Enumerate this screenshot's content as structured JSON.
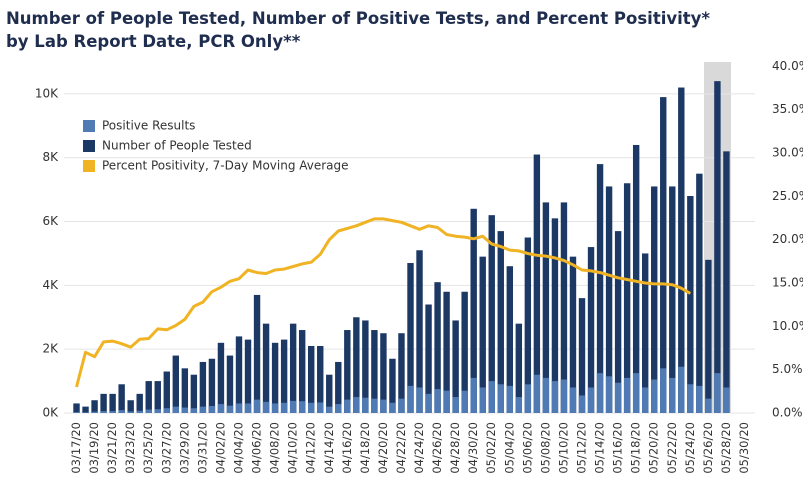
{
  "chart_data": {
    "type": "bar",
    "title": "Number of People Tested, Number of Positive Tests, and Percent Positivity*",
    "subtitle": "by Lab Report Date, PCR Only**",
    "categories": [
      "03/17/20",
      null,
      "03/19/20",
      null,
      "03/21/20",
      null,
      "03/23/20",
      null,
      "03/25/20",
      null,
      "03/27/20",
      null,
      "03/29/20",
      null,
      "03/31/20",
      null,
      "04/02/20",
      null,
      "04/04/20",
      null,
      "04/06/20",
      null,
      "04/08/20",
      null,
      "04/10/20",
      null,
      "04/12/20",
      null,
      "04/14/20",
      null,
      "04/16/20",
      null,
      "04/18/20",
      null,
      "04/20/20",
      null,
      "04/22/20",
      null,
      "04/24/20",
      null,
      "04/26/20",
      null,
      "04/28/20",
      null,
      "04/30/20",
      null,
      "05/02/20",
      null,
      "05/04/20",
      null,
      "05/06/20",
      null,
      "05/08/20",
      null,
      "05/10/20",
      null,
      "05/12/20",
      null,
      "05/14/20",
      null,
      "05/16/20",
      null,
      "05/18/20",
      null,
      "05/20/20",
      null,
      "05/22/20",
      null,
      "05/24/20",
      null,
      "05/26/20",
      null,
      "05/28/20",
      null,
      "05/30/20"
    ],
    "series": [
      {
        "name": "Positive Results",
        "color": "#4f7ab3",
        "type": "bar",
        "values": [
          30,
          20,
          40,
          60,
          60,
          90,
          50,
          70,
          110,
          120,
          150,
          200,
          170,
          150,
          200,
          220,
          280,
          230,
          300,
          300,
          420,
          350,
          300,
          320,
          380,
          370,
          320,
          330,
          200,
          280,
          420,
          500,
          480,
          450,
          420,
          320,
          450,
          850,
          800,
          600,
          750,
          700,
          500,
          700,
          1100,
          800,
          1000,
          900,
          850,
          500,
          900,
          1200,
          1100,
          1000,
          1050,
          800,
          550,
          800,
          1250,
          1150,
          950,
          1100,
          1250,
          800,
          1050,
          1400,
          1100,
          1450,
          900,
          850,
          450,
          1250,
          800,
          null,
          null
        ]
      },
      {
        "name": "Number of People Tested",
        "color": "#1c3864",
        "type": "bar",
        "values": [
          300,
          200,
          400,
          600,
          600,
          900,
          400,
          600,
          1000,
          1000,
          1300,
          1800,
          1400,
          1200,
          1600,
          1700,
          2200,
          1800,
          2400,
          2300,
          3700,
          2800,
          2200,
          2300,
          2800,
          2600,
          2100,
          2100,
          1200,
          1600,
          2600,
          3000,
          2900,
          2600,
          2500,
          1700,
          2500,
          4700,
          5100,
          3400,
          4100,
          3800,
          2900,
          3800,
          6400,
          4900,
          6200,
          5700,
          4600,
          2800,
          5500,
          8100,
          6600,
          6100,
          6600,
          4900,
          3600,
          5200,
          7800,
          7100,
          5700,
          7200,
          8400,
          5000,
          7100,
          9900,
          7100,
          10200,
          6800,
          7500,
          4800,
          10400,
          8200,
          null,
          null
        ]
      },
      {
        "name": "Percent Positivity, 7-Day Moving Average",
        "color": "#f0b323",
        "type": "line",
        "axis": "y2",
        "values": [
          3.0,
          7.0,
          6.5,
          8.2,
          8.3,
          8.0,
          7.6,
          8.5,
          8.6,
          9.7,
          9.6,
          10.1,
          10.8,
          12.3,
          12.8,
          14.0,
          14.5,
          15.2,
          15.5,
          16.5,
          16.2,
          16.1,
          16.5,
          16.6,
          16.9,
          17.2,
          17.4,
          18.3,
          20.0,
          21.0,
          21.3,
          21.6,
          22.0,
          22.4,
          22.4,
          22.2,
          22.0,
          21.6,
          21.2,
          21.6,
          21.4,
          20.6,
          20.4,
          20.3,
          20.1,
          20.4,
          19.5,
          19.2,
          18.8,
          18.7,
          18.4,
          18.2,
          18.1,
          17.9,
          17.6,
          17.1,
          16.5,
          16.4,
          16.2,
          15.9,
          15.6,
          15.4,
          15.2,
          15.0,
          14.9,
          14.9,
          14.8,
          14.4,
          13.8,
          null,
          null,
          null,
          null,
          null,
          null
        ]
      }
    ],
    "ylim": [
      0,
      11000
    ],
    "yticks": [
      {
        "value": 0,
        "label": "0K"
      },
      {
        "value": 2000,
        "label": "2K"
      },
      {
        "value": 4000,
        "label": "4K"
      },
      {
        "value": 6000,
        "label": "6K"
      },
      {
        "value": 8000,
        "label": "8K"
      },
      {
        "value": 10000,
        "label": "10K"
      }
    ],
    "y2lim": [
      0,
      40.5
    ],
    "y2ticks": [
      {
        "value": 0,
        "label": "0.0%"
      },
      {
        "value": 5,
        "label": "5.0%"
      },
      {
        "value": 10,
        "label": "10.0%"
      },
      {
        "value": 15,
        "label": "15.0%"
      },
      {
        "value": 20,
        "label": "20.0%"
      },
      {
        "value": 25,
        "label": "25.0%"
      },
      {
        "value": 30,
        "label": "30.0%"
      },
      {
        "value": 35,
        "label": "35.0%"
      },
      {
        "value": 40,
        "label": "40.0%"
      }
    ],
    "grid": true,
    "legend": "top-left"
  }
}
